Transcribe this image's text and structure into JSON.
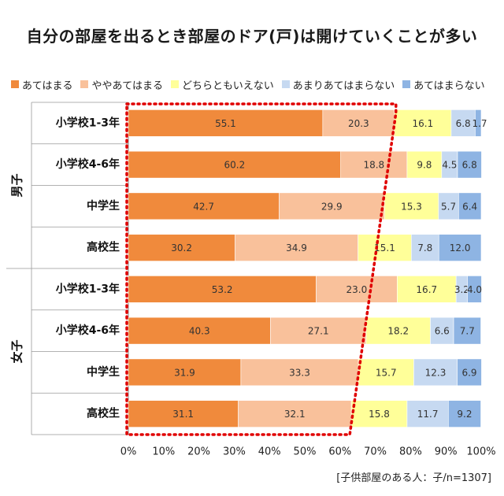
{
  "chart_data": {
    "type": "bar",
    "orientation": "horizontal",
    "stacked": true,
    "title": "自分の部屋を出るとき部屋のドア(戸)は開けていくことが多い",
    "xlabel": "",
    "ylabel": "",
    "xlim": [
      0,
      100
    ],
    "x_ticks": [
      "0%",
      "10%",
      "20%",
      "30%",
      "40%",
      "50%",
      "60%",
      "70%",
      "80%",
      "90%",
      "100%"
    ],
    "legend_position": "top",
    "groups": [
      {
        "label": "男子",
        "categories": [
          "小学校1-3年",
          "小学校4-6年",
          "中学生",
          "高校生"
        ]
      },
      {
        "label": "女子",
        "categories": [
          "小学校1-3年",
          "小学校4-6年",
          "中学生",
          "高校生"
        ]
      }
    ],
    "series": [
      {
        "name": "あてはまる",
        "color": "#F08A3C",
        "values": [
          55.1,
          60.2,
          42.7,
          30.2,
          53.2,
          40.3,
          31.9,
          31.1
        ]
      },
      {
        "name": "ややあてはまる",
        "color": "#F9C19B",
        "values": [
          20.3,
          18.8,
          29.9,
          34.9,
          23.0,
          27.1,
          33.3,
          32.1
        ]
      },
      {
        "name": "どちらともいえない",
        "color": "#FFFF99",
        "values": [
          16.1,
          9.8,
          15.3,
          15.1,
          16.7,
          18.2,
          15.7,
          15.8
        ]
      },
      {
        "name": "あまりあてはまらない",
        "color": "#C6D9F1",
        "values": [
          6.8,
          4.5,
          5.7,
          7.8,
          3.2,
          6.6,
          12.3,
          11.7
        ]
      },
      {
        "name": "あてはまらない",
        "color": "#8EB4E3",
        "values": [
          1.7,
          6.8,
          6.4,
          12.0,
          4.0,
          7.7,
          6.9,
          9.2
        ]
      }
    ],
    "value_labels": [
      [
        "55.1",
        "20.3",
        "16.1",
        "6.8",
        "1.7"
      ],
      [
        "60.2",
        "18.8",
        "9.8",
        "4.5",
        "6.8"
      ],
      [
        "42.7",
        "29.9",
        "15.3",
        "5.7",
        "6.4"
      ],
      [
        "30.2",
        "34.9",
        "15.1",
        "7.8",
        "12.0"
      ],
      [
        "53.2",
        "23.0",
        "16.7",
        "3.2",
        "4.0"
      ],
      [
        "40.3",
        "27.1",
        "18.2",
        "6.6",
        "7.7"
      ],
      [
        "31.9",
        "33.3",
        "15.7",
        "12.3",
        "6.9"
      ],
      [
        "31.1",
        "32.1",
        "15.8",
        "11.7",
        "9.2"
      ]
    ],
    "highlight": {
      "style": "dotted",
      "color": "#E00000"
    },
    "source_note": "[子供部屋のある人：子/n=1307]"
  }
}
